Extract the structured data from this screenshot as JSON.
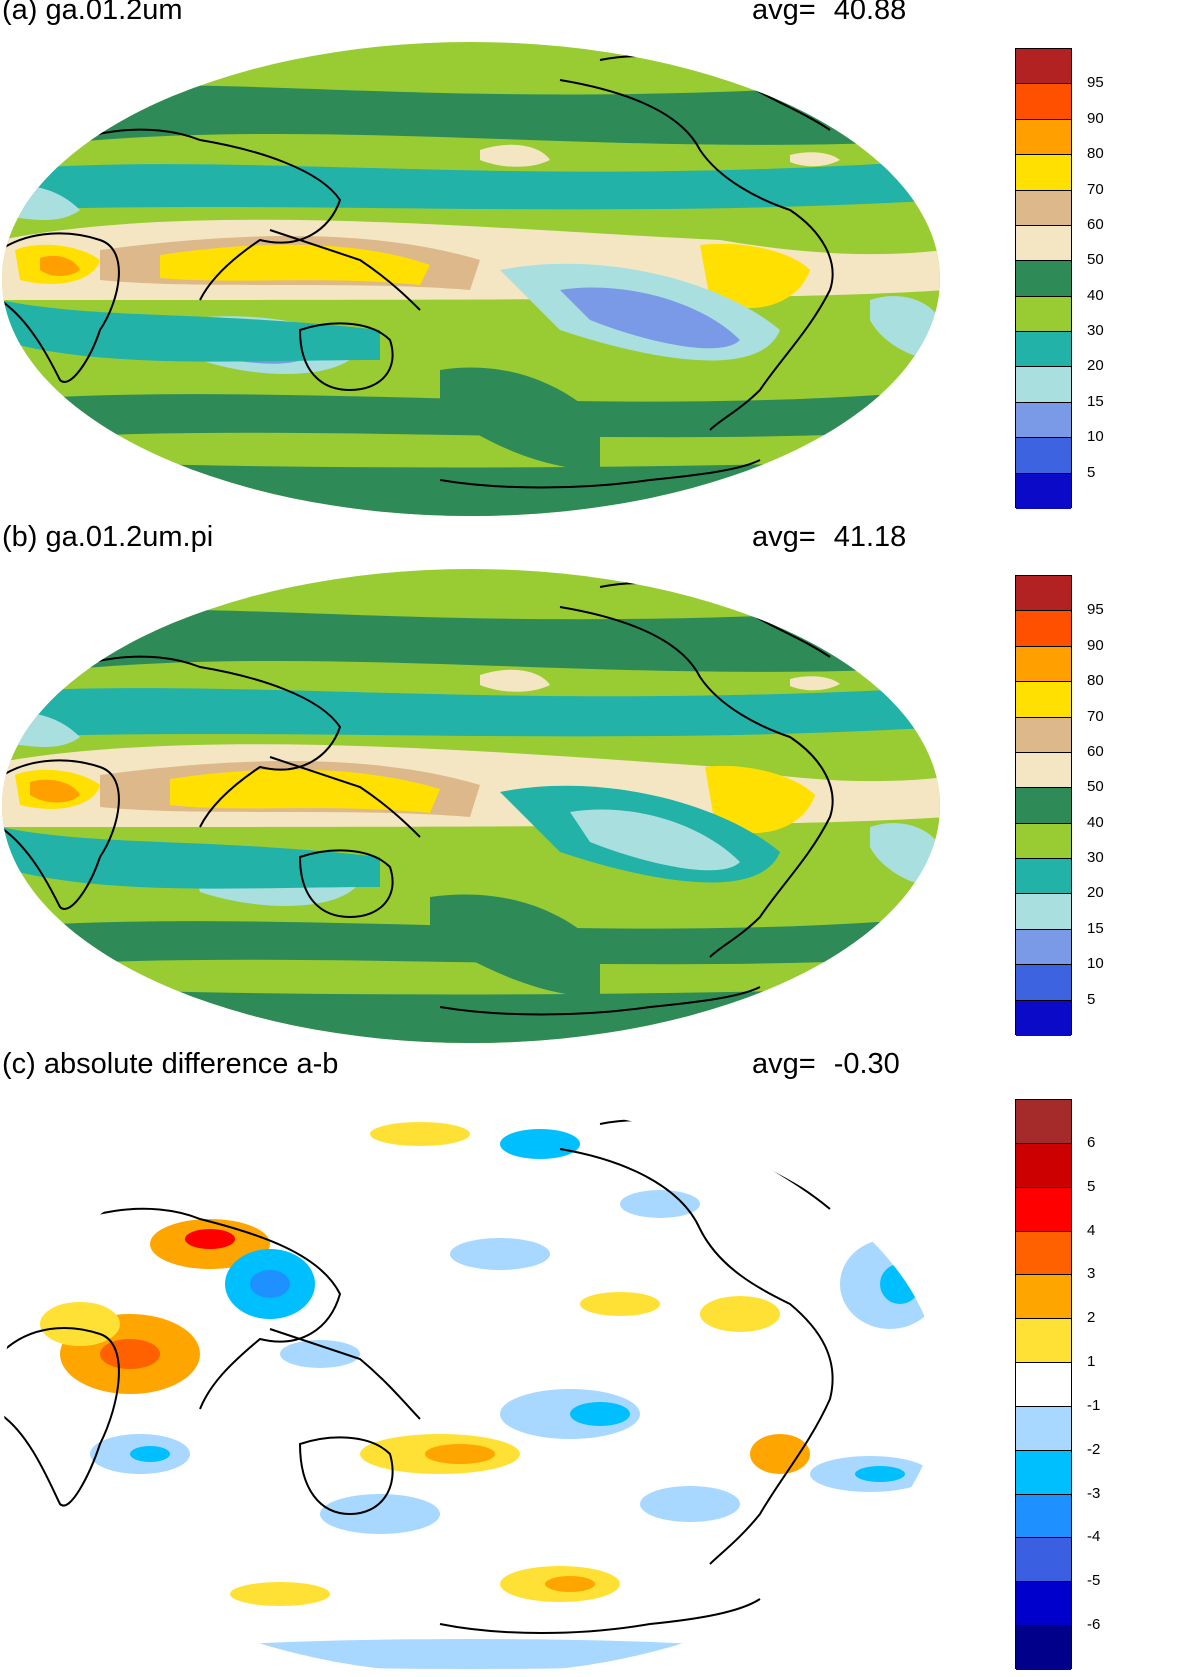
{
  "panels": [
    {
      "title": "(a) ga.01.2um",
      "avg_label": "avg=",
      "avg_value": "40.88",
      "colors": [
        "#0a0ac8",
        "#3e63e0",
        "#7a9ae8",
        "#aadfe0",
        "#22b2a8",
        "#99cc33",
        "#2e8b57",
        "#f5e6c3",
        "#dcb88a",
        "#ffe000",
        "#ffa000",
        "#ff5000",
        "#b22222"
      ],
      "tick_labels": [
        "5",
        "10",
        "15",
        "20",
        "30",
        "40",
        "50",
        "60",
        "70",
        "80",
        "90",
        "95"
      ]
    },
    {
      "title": "(b) ga.01.2um.pi",
      "avg_label": "avg=",
      "avg_value": "41.18",
      "colors": [
        "#0a0ac8",
        "#3e63e0",
        "#7a9ae8",
        "#aadfe0",
        "#22b2a8",
        "#99cc33",
        "#2e8b57",
        "#f5e6c3",
        "#dcb88a",
        "#ffe000",
        "#ffa000",
        "#ff5000",
        "#b22222"
      ],
      "tick_labels": [
        "5",
        "10",
        "15",
        "20",
        "30",
        "40",
        "50",
        "60",
        "70",
        "80",
        "90",
        "95"
      ]
    },
    {
      "title": "(c) absolute difference a-b",
      "avg_label": "avg=",
      "avg_value": "-0.30",
      "colors": [
        "#00008b",
        "#0000cd",
        "#3a5fe0",
        "#1e90ff",
        "#00bfff",
        "#a8d8ff",
        "#ffffff",
        "#ffe135",
        "#ffa500",
        "#ff6000",
        "#ff0000",
        "#cc0000",
        "#a52a2a"
      ],
      "tick_labels": [
        "-6",
        "-5",
        "-4",
        "-3",
        "-2",
        "-1",
        "1",
        "2",
        "3",
        "4",
        "5",
        "6"
      ]
    }
  ]
}
